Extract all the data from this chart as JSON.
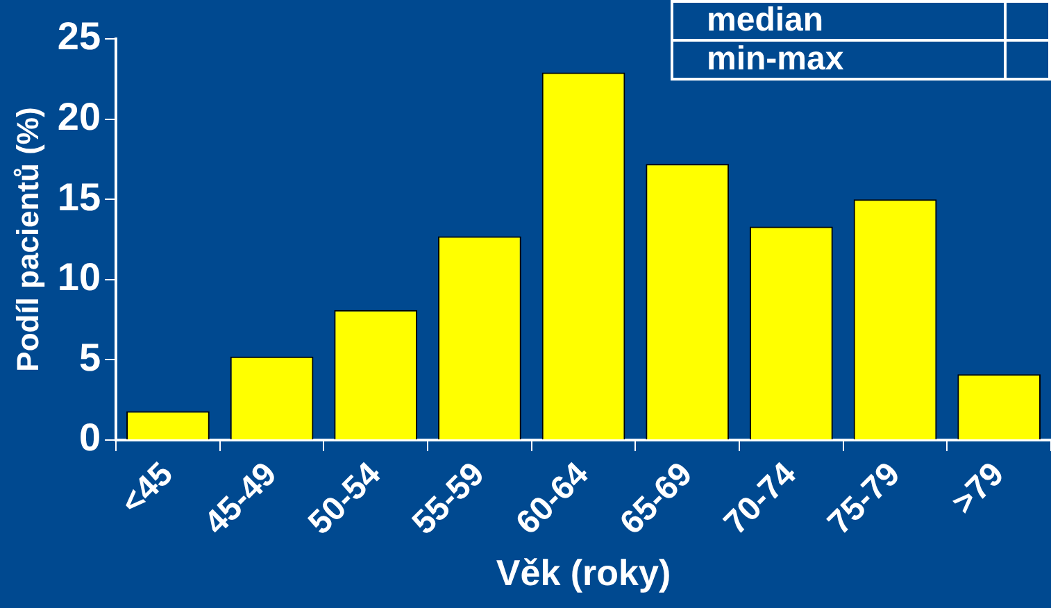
{
  "chart_data": {
    "type": "bar",
    "xlabel": "Věk (roky)",
    "ylabel": "Podíl pacientů (%)",
    "categories": [
      "<45",
      "45-49",
      "50-54",
      "55-59",
      "60-64",
      "65-69",
      "70-74",
      "75-79",
      ">79"
    ],
    "values": [
      1.8,
      5.2,
      8.1,
      12.7,
      22.9,
      17.2,
      13.3,
      15.0,
      4.1
    ],
    "color": "#ffff00",
    "ylim": [
      0,
      25
    ],
    "yticks": [
      0,
      5,
      10,
      15,
      20,
      25
    ],
    "annotations": [
      "median",
      "min-max"
    ]
  }
}
